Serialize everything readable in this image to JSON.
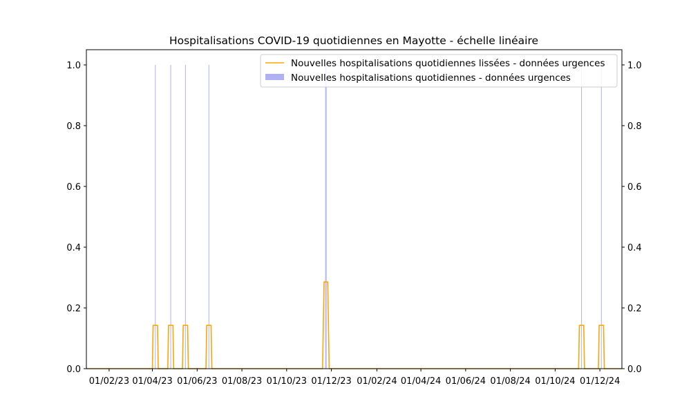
{
  "chart_data": {
    "type": "bar",
    "title": "Hospitalisations COVID-19 quotidiennes en Mayotte - échelle linéaire",
    "xlabel": "",
    "ylabel": "",
    "x_range": [
      "2023-01-01",
      "2024-12-31"
    ],
    "ylim": [
      0,
      1.05
    ],
    "y_ticks": [
      0.0,
      0.2,
      0.4,
      0.6,
      0.8,
      1.0
    ],
    "y_tick_labels": [
      "0.0",
      "0.2",
      "0.4",
      "0.6",
      "0.8",
      "1.0"
    ],
    "x_ticks": [
      "2023-02-01",
      "2023-04-01",
      "2023-06-01",
      "2023-08-01",
      "2023-10-01",
      "2023-12-01",
      "2024-02-01",
      "2024-04-01",
      "2024-06-01",
      "2024-08-01",
      "2024-10-01",
      "2024-12-01"
    ],
    "x_tick_labels": [
      "01/02/23",
      "01/04/23",
      "01/06/23",
      "01/08/23",
      "01/10/23",
      "01/12/23",
      "01/02/24",
      "01/04/24",
      "01/06/24",
      "01/08/24",
      "01/10/24",
      "01/12/24"
    ],
    "right_axis": true,
    "grid": false,
    "legend_position": "top-right",
    "series": [
      {
        "name": "Nouvelles hospitalisations quotidiennes - données urgences",
        "kind": "bar",
        "color": "#b0b0f5",
        "dates": [
          "2023-04-05",
          "2023-04-26",
          "2023-05-16",
          "2023-06-17",
          "2023-11-23",
          "2023-11-24",
          "2024-11-06",
          "2024-12-03"
        ],
        "values": [
          1,
          1,
          1,
          1,
          1,
          1,
          1,
          1
        ]
      },
      {
        "name": "Nouvelles hospitalisations lissées - données urgences",
        "kind": "line",
        "color": "#ffa500",
        "smoothing_window_days": 7,
        "legend_label": "Nouvelles hospitalisations quotidiennes lissées - données urgences"
      }
    ]
  }
}
